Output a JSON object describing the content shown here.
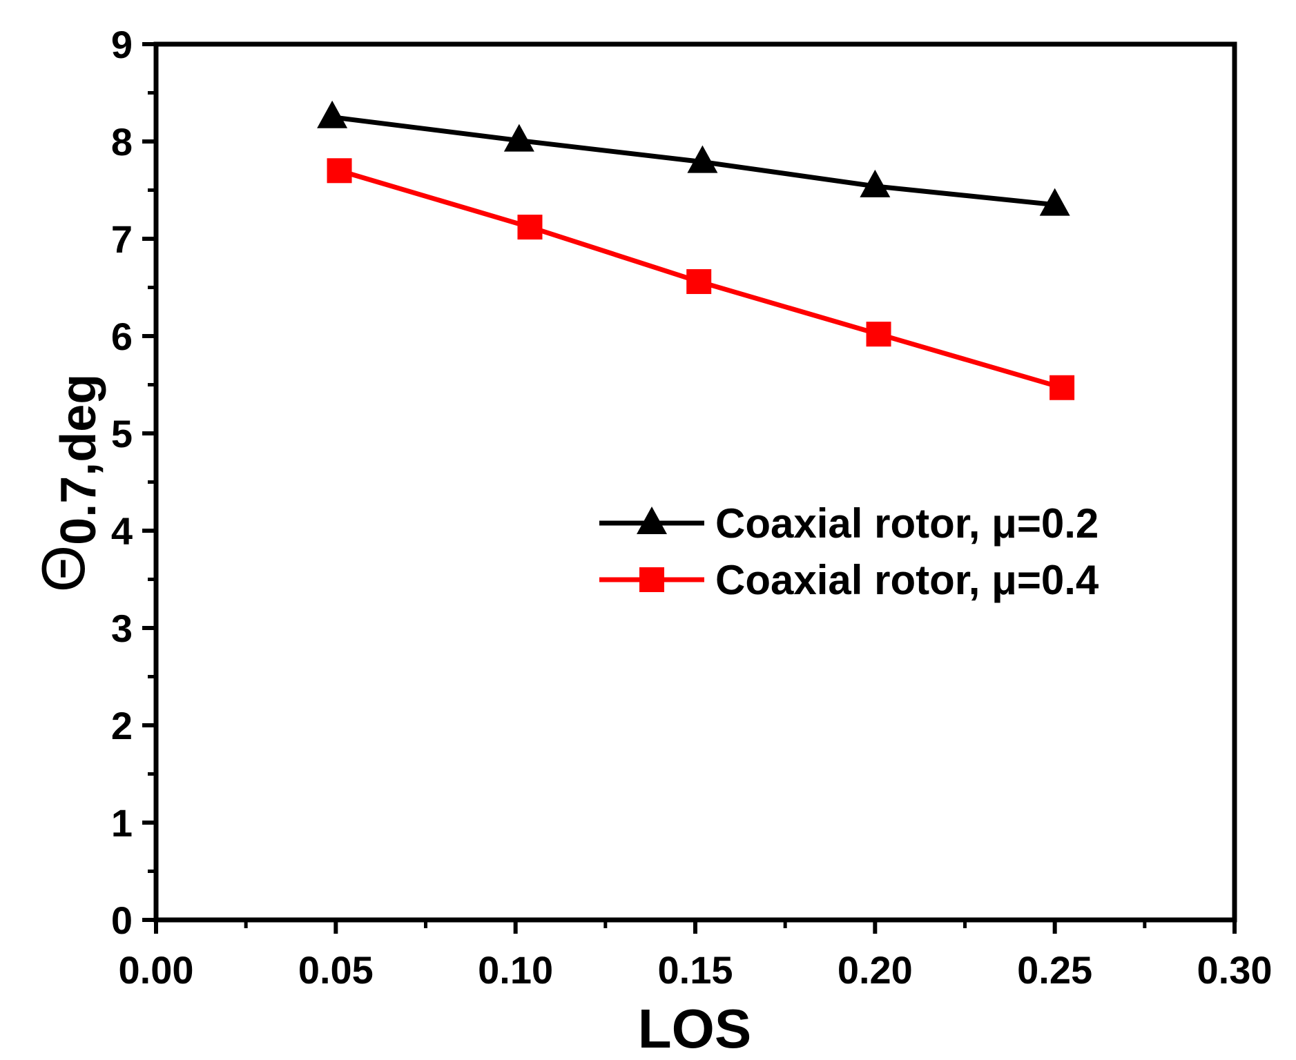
{
  "chart_data": {
    "type": "line",
    "title": "",
    "xlabel": "LOS",
    "ylabel": {
      "symbol": "Θ",
      "subscript": "0.7,deg"
    },
    "xlim": [
      0.0,
      0.3
    ],
    "ylim": [
      0,
      9
    ],
    "x_ticks": [
      0.0,
      0.05,
      0.1,
      0.15,
      0.2,
      0.25,
      0.3
    ],
    "x_tick_labels": [
      "0.00",
      "0.05",
      "0.10",
      "0.15",
      "0.20",
      "0.25",
      "0.30"
    ],
    "y_ticks": [
      0,
      1,
      2,
      3,
      4,
      5,
      6,
      7,
      8,
      9
    ],
    "y_tick_labels": [
      "0",
      "1",
      "2",
      "3",
      "4",
      "5",
      "6",
      "7",
      "8",
      "9"
    ],
    "x_minor_step": 0.025,
    "y_minor_step": 0.5,
    "grid": false,
    "legend_position": "center-right",
    "series": [
      {
        "name": "Coaxial rotor, μ=0.2",
        "color": "#000000",
        "marker": "triangle",
        "x": [
          0.049,
          0.101,
          0.152,
          0.2,
          0.25
        ],
        "values": [
          8.25,
          8.01,
          7.79,
          7.54,
          7.35
        ]
      },
      {
        "name": "Coaxial rotor, μ=0.4",
        "color": "#ff0000",
        "marker": "square",
        "x": [
          0.051,
          0.104,
          0.151,
          0.201,
          0.252
        ],
        "values": [
          7.7,
          7.12,
          6.56,
          6.02,
          5.47
        ]
      }
    ]
  }
}
